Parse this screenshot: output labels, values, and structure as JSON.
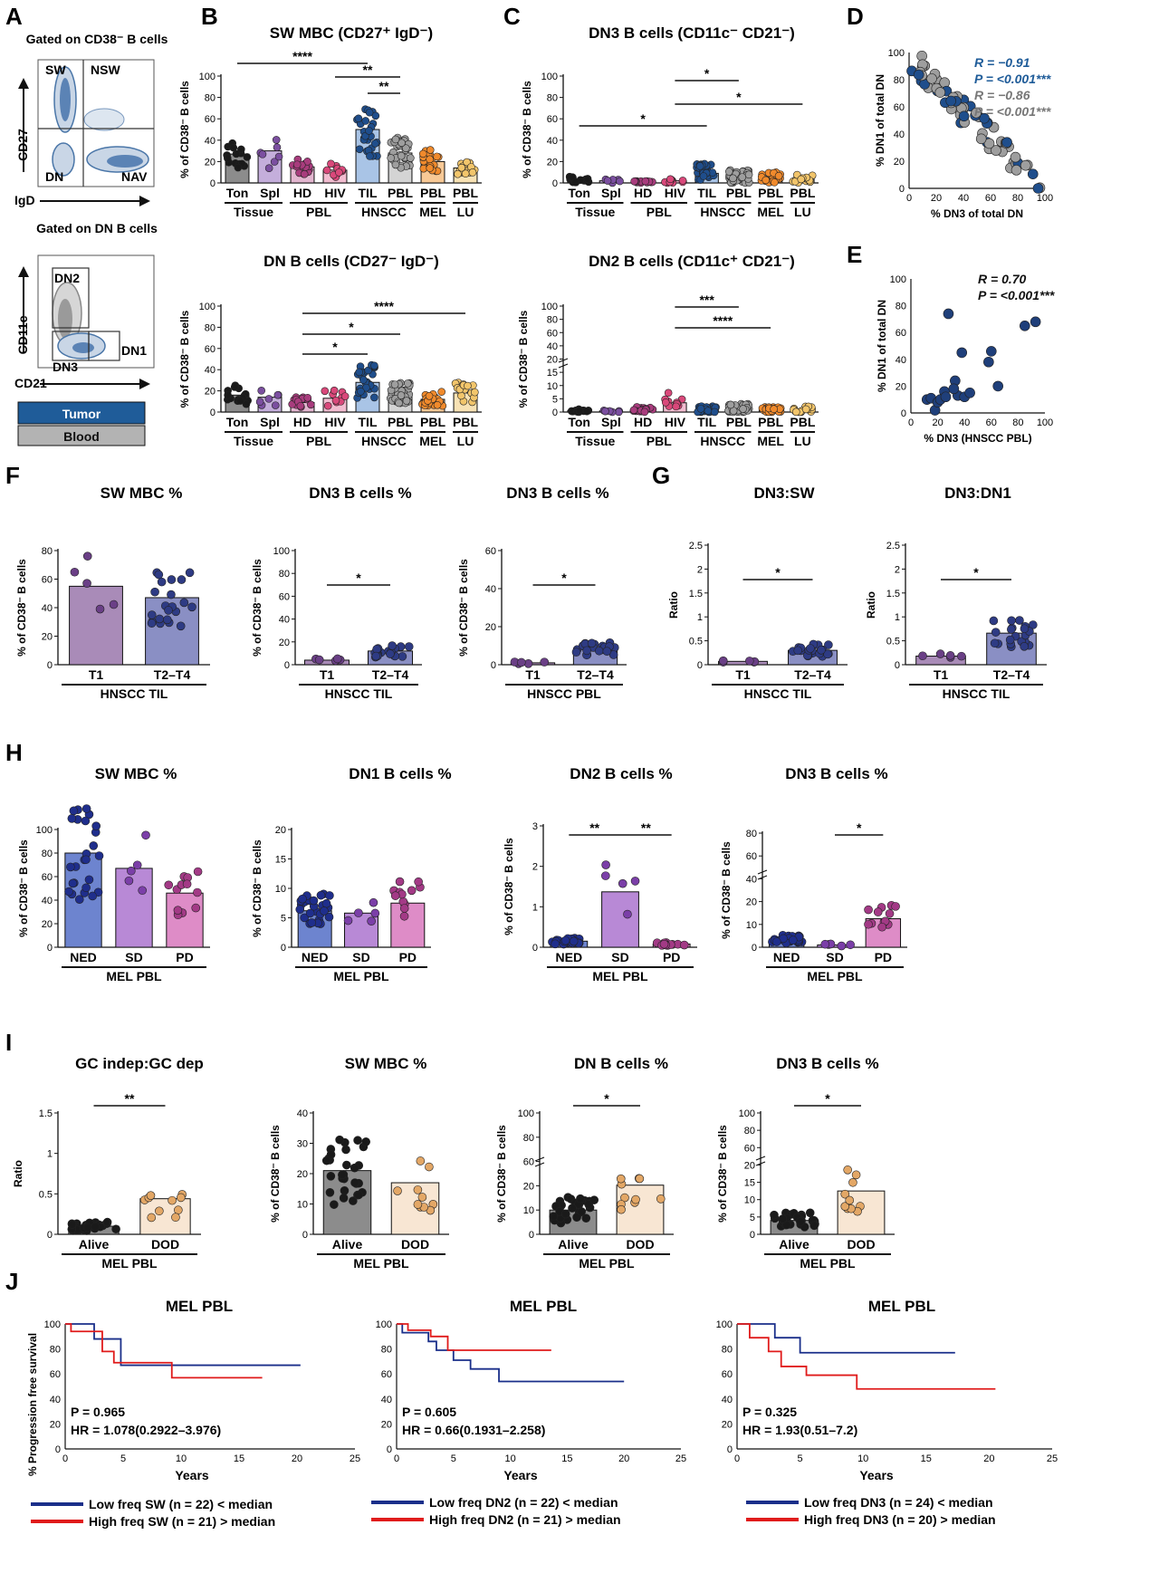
{
  "chart_data": [
    {
      "panel": "A",
      "type": "flow-gating",
      "plots": [
        {
          "title": "Gated on CD38⁻ B cells",
          "xlabel": "IgD",
          "ylabel": "CD27",
          "gates": [
            "SW",
            "NSW",
            "DN",
            "NAV"
          ]
        },
        {
          "title": "Gated on DN B cells",
          "xlabel": "CD21",
          "ylabel": "CD11c",
          "gates": [
            "DN2",
            "DN3",
            "DN1"
          ]
        }
      ],
      "legend": [
        {
          "name": "Tumor",
          "color": "#1f5c99"
        },
        {
          "name": "Blood",
          "color": "#b3b3b3"
        }
      ]
    },
    {
      "panel": "B",
      "type": "bar",
      "title": "SW MBC (CD27⁺ IgD⁻)",
      "ylabel": "% of CD38⁻ B cells",
      "ylim": [
        0,
        100
      ],
      "categories": [
        "Ton",
        "Spl",
        "HD",
        "HIV",
        "TIL",
        "PBL",
        "PBL",
        "PBL"
      ],
      "groups": [
        "Tissue",
        "PBL",
        "HNSCC",
        "MEL",
        "LU"
      ],
      "values": [
        27,
        30,
        15,
        12,
        50,
        28,
        20,
        14
      ],
      "significance": [
        "****",
        "**",
        "**"
      ]
    },
    {
      "panel": "C",
      "type": "bar",
      "title": "DN3 B cells (CD11c⁻ CD21⁻)",
      "ylabel": "% of CD38⁻ B cells",
      "ylim": [
        0,
        100
      ],
      "categories": [
        "Ton",
        "Spl",
        "HD",
        "HIV",
        "TIL",
        "PBL",
        "PBL",
        "PBL"
      ],
      "groups": [
        "Tissue",
        "PBL",
        "HNSCC",
        "MEL",
        "LU"
      ],
      "values": [
        3,
        2,
        1,
        2,
        9,
        6,
        5,
        4
      ],
      "significance": [
        "*",
        "*",
        "*"
      ]
    },
    {
      "panel": "D",
      "type": "scatter",
      "xlabel": "% DN3 of total DN",
      "ylabel": "% DN1 of total DN",
      "xlim": [
        0,
        100
      ],
      "ylim": [
        0,
        100
      ],
      "annotations": [
        "R = −0.91",
        "P = <0.001***",
        "R = −0.86",
        "P = <0.001***"
      ]
    },
    {
      "panel": "B",
      "type": "bar",
      "title": "DN B cells (CD27⁻ IgD⁻)",
      "ylabel": "% of CD38⁻ B cells",
      "ylim": [
        0,
        100
      ],
      "categories": [
        "Ton",
        "Spl",
        "HD",
        "HIV",
        "TIL",
        "PBL",
        "PBL",
        "PBL"
      ],
      "groups": [
        "Tissue",
        "PBL",
        "HNSCC",
        "MEL",
        "LU"
      ],
      "values": [
        16,
        14,
        9,
        13,
        28,
        18,
        12,
        18
      ],
      "significance": [
        "****",
        "*",
        "*"
      ]
    },
    {
      "panel": "C",
      "type": "bar",
      "title": "DN2 B cells (CD11c⁺ CD21⁻)",
      "ylabel": "% of CD38⁻ B cells",
      "yticks": [
        "0",
        "5",
        "10",
        "15",
        "20",
        "40",
        "60",
        "80",
        "100"
      ],
      "categories": [
        "Ton",
        "Spl",
        "HD",
        "HIV",
        "TIL",
        "PBL",
        "PBL",
        "PBL"
      ],
      "groups": [
        "Tissue",
        "PBL",
        "HNSCC",
        "MEL",
        "LU"
      ],
      "values": [
        0.5,
        0.4,
        1,
        3.5,
        1,
        1.5,
        1,
        1
      ],
      "significance": [
        "***",
        "****"
      ]
    },
    {
      "panel": "E",
      "type": "scatter",
      "xlabel": "% DN3 (HNSCC PBL)",
      "ylabel": "% DN1 of total DN",
      "xlim": [
        0,
        100
      ],
      "ylim": [
        0,
        100
      ],
      "annotations": [
        "R = 0.70",
        "P = <0.001***"
      ]
    },
    {
      "panel": "F",
      "type": "bar",
      "title": "SW MBC %",
      "ylabel": "% of CD38⁻ B cells",
      "ylim": [
        0,
        80
      ],
      "categories": [
        "T1",
        "T2–T4"
      ],
      "values": [
        55,
        47
      ],
      "group": "HNSCC TIL"
    },
    {
      "panel": "F",
      "type": "bar",
      "title": "DN3 B cells %",
      "ylabel": "% of CD38⁻ B cells",
      "ylim": [
        0,
        100
      ],
      "categories": [
        "T1",
        "T2–T4"
      ],
      "values": [
        4,
        12
      ],
      "group": "HNSCC TIL",
      "significance": [
        "*"
      ]
    },
    {
      "panel": "F",
      "type": "bar",
      "title": "DN3 B cells %",
      "ylabel": "% of CD38⁻ B cells",
      "ylim": [
        0,
        60
      ],
      "categories": [
        "T1",
        "T2–T4"
      ],
      "values": [
        1,
        8
      ],
      "group": "HNSCC PBL",
      "significance": [
        "*"
      ]
    },
    {
      "panel": "G",
      "type": "bar",
      "title": "DN3:SW",
      "ylabel": "Ratio",
      "ylim": [
        0,
        2.5
      ],
      "categories": [
        "T1",
        "T2–T4"
      ],
      "values": [
        0.07,
        0.3
      ],
      "group": "HNSCC TIL",
      "significance": [
        "*"
      ]
    },
    {
      "panel": "G",
      "type": "bar",
      "title": "DN3:DN1",
      "ylabel": "Ratio",
      "ylim": [
        0,
        2.5
      ],
      "categories": [
        "T1",
        "T2–T4"
      ],
      "values": [
        0.18,
        0.66
      ],
      "group": "HNSCC TIL",
      "significance": [
        "*"
      ]
    },
    {
      "panel": "H",
      "type": "bar",
      "title": "SW MBC %",
      "ylabel": "% of CD38⁻ B cells",
      "ylim": [
        0,
        100
      ],
      "categories": [
        "NED",
        "SD",
        "PD"
      ],
      "values": [
        80,
        67,
        46
      ],
      "group": "MEL PBL"
    },
    {
      "panel": "H",
      "type": "bar",
      "title": "DN1 B cells %",
      "ylabel": "% of CD38⁻ B cells",
      "ylim": [
        0,
        20
      ],
      "categories": [
        "NED",
        "SD",
        "PD"
      ],
      "values": [
        6.2,
        5.8,
        7.5
      ],
      "group": "MEL PBL"
    },
    {
      "panel": "H",
      "type": "bar",
      "title": "DN2 B cells %",
      "ylabel": "% of CD38⁻ B cells",
      "ylim": [
        0,
        3
      ],
      "categories": [
        "NED",
        "SD",
        "PD"
      ],
      "values": [
        0.15,
        1.37,
        0.08
      ],
      "group": "MEL PBL",
      "significance": [
        "**",
        "**"
      ]
    },
    {
      "panel": "H",
      "type": "bar",
      "title": "DN3 B cells %",
      "ylabel": "% of CD38⁻ B cells",
      "yticks": [
        "0",
        "10",
        "20",
        "40",
        "60",
        "80"
      ],
      "categories": [
        "NED",
        "SD",
        "PD"
      ],
      "values": [
        3.5,
        1,
        12.5
      ],
      "group": "MEL PBL",
      "significance": [
        "*"
      ]
    },
    {
      "panel": "I",
      "type": "bar",
      "title": "GC indep:GC dep",
      "ylabel": "Ratio",
      "ylim": [
        0,
        1.5
      ],
      "categories": [
        "Alive",
        "DOD"
      ],
      "values": [
        0.1,
        0.44
      ],
      "group": "MEL PBL",
      "significance": [
        "**"
      ]
    },
    {
      "panel": "I",
      "type": "bar",
      "title": "SW MBC %",
      "ylabel": "% of CD38⁻ B cells",
      "ylim": [
        0,
        40
      ],
      "categories": [
        "Alive",
        "DOD"
      ],
      "values": [
        21,
        17
      ],
      "group": "MEL PBL"
    },
    {
      "panel": "I",
      "type": "bar",
      "title": "DN B cells %",
      "ylabel": "% of CD38⁻ B cells",
      "yticks": [
        "0",
        "10",
        "20",
        "60",
        "80",
        "100"
      ],
      "categories": [
        "Alive",
        "DOD"
      ],
      "values": [
        10,
        21
      ],
      "group": "MEL PBL",
      "significance": [
        "*"
      ]
    },
    {
      "panel": "I",
      "type": "bar",
      "title": "DN3 B cells %",
      "ylabel": "% of CD38⁻ B cells",
      "yticks": [
        "0",
        "5",
        "10",
        "15",
        "20",
        "60",
        "80",
        "100"
      ],
      "categories": [
        "Alive",
        "DOD"
      ],
      "values": [
        4,
        12.5
      ],
      "group": "MEL PBL",
      "significance": [
        "*"
      ]
    },
    {
      "panel": "J",
      "type": "line",
      "title": "MEL PBL",
      "xlabel": "Years",
      "ylabel": "% Progression free survival",
      "xlim": [
        0,
        25
      ],
      "ylim": [
        0,
        100
      ],
      "series": [
        {
          "name": "Low freq SW (n = 22) < median",
          "color": "#1a2f8a",
          "x": [
            0,
            2.5,
            4.8,
            20.3
          ],
          "y": [
            100,
            88,
            67,
            67
          ]
        },
        {
          "name": "High freq SW (n = 21) > median",
          "color": "#e01b1b",
          "x": [
            0,
            0.5,
            3.2,
            4.2,
            9.2,
            17
          ],
          "y": [
            100,
            94,
            78,
            69,
            57,
            57
          ]
        }
      ],
      "annotations": [
        "P = 0.965",
        "HR = 1.078(0.2922–3.976)"
      ]
    },
    {
      "panel": "J",
      "type": "line",
      "title": "MEL PBL",
      "xlabel": "Years",
      "ylabel": "",
      "xlim": [
        0,
        25
      ],
      "ylim": [
        0,
        100
      ],
      "series": [
        {
          "name": "Low freq DN2 (n = 22) < median",
          "color": "#1a2f8a",
          "x": [
            0,
            0.5,
            2.8,
            3.5,
            5,
            6.5,
            9,
            20
          ],
          "y": [
            100,
            93,
            86,
            79,
            71,
            64,
            54,
            54
          ]
        },
        {
          "name": "High freq DN2 (n = 21) > median",
          "color": "#e01b1b",
          "x": [
            0,
            1,
            3,
            4.5,
            13.6
          ],
          "y": [
            100,
            95,
            90,
            79,
            79
          ]
        }
      ],
      "annotations": [
        "P = 0.605",
        "HR = 0.66(0.1931–2.258)"
      ]
    },
    {
      "panel": "J",
      "type": "line",
      "title": "MEL PBL",
      "xlabel": "Years",
      "ylabel": "",
      "xlim": [
        0,
        25
      ],
      "ylim": [
        0,
        100
      ],
      "series": [
        {
          "name": "Low freq DN3 (n = 24) < median",
          "color": "#1a2f8a",
          "x": [
            0,
            3,
            5,
            17.3
          ],
          "y": [
            100,
            89,
            77,
            77
          ]
        },
        {
          "name": "High freq DN3 (n = 20) > median",
          "color": "#e01b1b",
          "x": [
            0,
            1,
            2.5,
            3.5,
            5.5,
            9.5,
            20.5
          ],
          "y": [
            100,
            89,
            78,
            66,
            59,
            48,
            48
          ]
        }
      ],
      "annotations": [
        "P = 0.325",
        "HR = 1.93(0.51–7.2)"
      ]
    }
  ],
  "panel_letters": [
    "A",
    "B",
    "C",
    "D",
    "E",
    "F",
    "G",
    "H",
    "I",
    "J"
  ],
  "flow_axis": {
    "cd27": "CD27",
    "igd": "IgD",
    "cd11c": "CD11c",
    "cd21": "CD21"
  },
  "gate_titles": {
    "a1": "Gated on CD38⁻ B cells",
    "a2": "Gated on DN B cells"
  },
  "group_labels": {
    "tissue": "Tissue",
    "pbl": "PBL",
    "hnscc": "HNSCC",
    "mel": "MEL",
    "lu": "LU",
    "hnscc_til": "HNSCC TIL",
    "hnscc_pbl": "HNSCC PBL",
    "mel_pbl": "MEL PBL"
  },
  "colors": {
    "tumor": "#1f5c99",
    "blood": "#b3b3b3",
    "low_freq": "#1a2f8a",
    "high_freq": "#e01b1b"
  }
}
